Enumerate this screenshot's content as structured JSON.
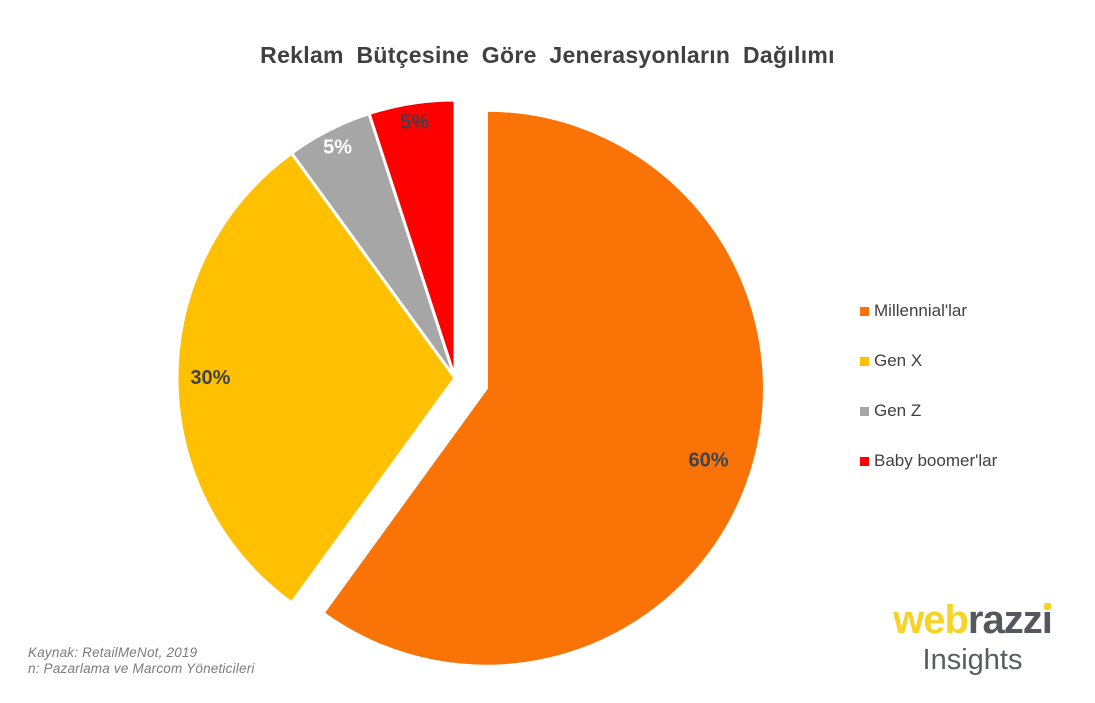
{
  "title": "Reklam Bütçesine Göre Jenerasyonların Dağılımı",
  "chart_data": {
    "type": "pie",
    "title": "Reklam Bütçesine Göre Jenerasyonların Dağılımı",
    "legend_position": "right",
    "direction": "clockwise",
    "start_angle_deg": 0,
    "slices": [
      {
        "label": "Millennial'lar",
        "value": 60,
        "pct_label": "60%",
        "color": "#fa7306",
        "label_color": "#3d434c",
        "exploded": true,
        "label_r": 0.84
      },
      {
        "label": "Gen X",
        "value": 30,
        "pct_label": "30%",
        "color": "#ffc002",
        "label_color": "#3d434c",
        "exploded": false,
        "label_r": 0.88
      },
      {
        "label": "Gen Z",
        "value": 5,
        "pct_label": "5%",
        "color": "#a6a6a6",
        "label_color": "#ffffff",
        "exploded": false,
        "label_r": 0.93
      },
      {
        "label": "Baby boomer'lar",
        "value": 5,
        "pct_label": "5%",
        "color": "#fe0000",
        "label_color": "#3d434c",
        "exploded": false,
        "label_r": 0.93
      }
    ]
  },
  "source": {
    "line1": "Kaynak: RetailMeNot, 2019",
    "line2": "n: Pazarlama ve Marcom Yöneticileri"
  },
  "logo": {
    "word_yellow": "web",
    "word_gray": "razz",
    "word_gray_i": "ı",
    "subtitle": "Insights",
    "yellow": "#f5d327",
    "gray": "#54575b"
  }
}
